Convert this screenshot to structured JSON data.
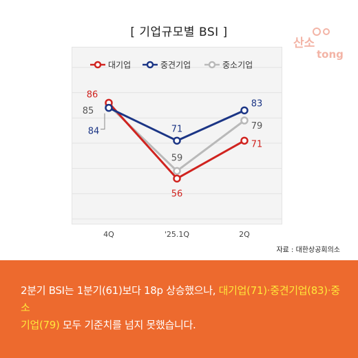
{
  "header": {
    "title": "[ 기업규모별 BSI ]",
    "logo_text_top": "산소",
    "logo_text_bottom": "tong"
  },
  "source": "자료 : 대한상공회의소",
  "caption": {
    "part1": "2분기 BSI는 1분기(61)보다 18p 상승했으나, ",
    "highlight1": "대기업(71)·중견기업(83)·중소",
    "highlight2": "기업(79)",
    "part2": " 모두 기준치를 넘지 못했습니다."
  },
  "colors": {
    "large": "#d0231f",
    "mid": "#1b3585",
    "small": "#b9b9b9",
    "banner": "#ed6a2e",
    "highlight": "#ffe83a"
  },
  "chart_data": {
    "type": "line",
    "categories": [
      "4Q",
      "'25.1Q",
      "2Q"
    ],
    "series": [
      {
        "name": "대기업",
        "values": [
          86,
          56,
          71
        ],
        "color": "#d0231f"
      },
      {
        "name": "중견기업",
        "values": [
          84,
          71,
          83
        ],
        "color": "#1b3585"
      },
      {
        "name": "중소기업",
        "values": [
          85,
          59,
          79
        ],
        "color": "#b9b9b9"
      }
    ],
    "legend_position": "top",
    "grid": "horizontal",
    "ylim": [
      40,
      100
    ]
  }
}
